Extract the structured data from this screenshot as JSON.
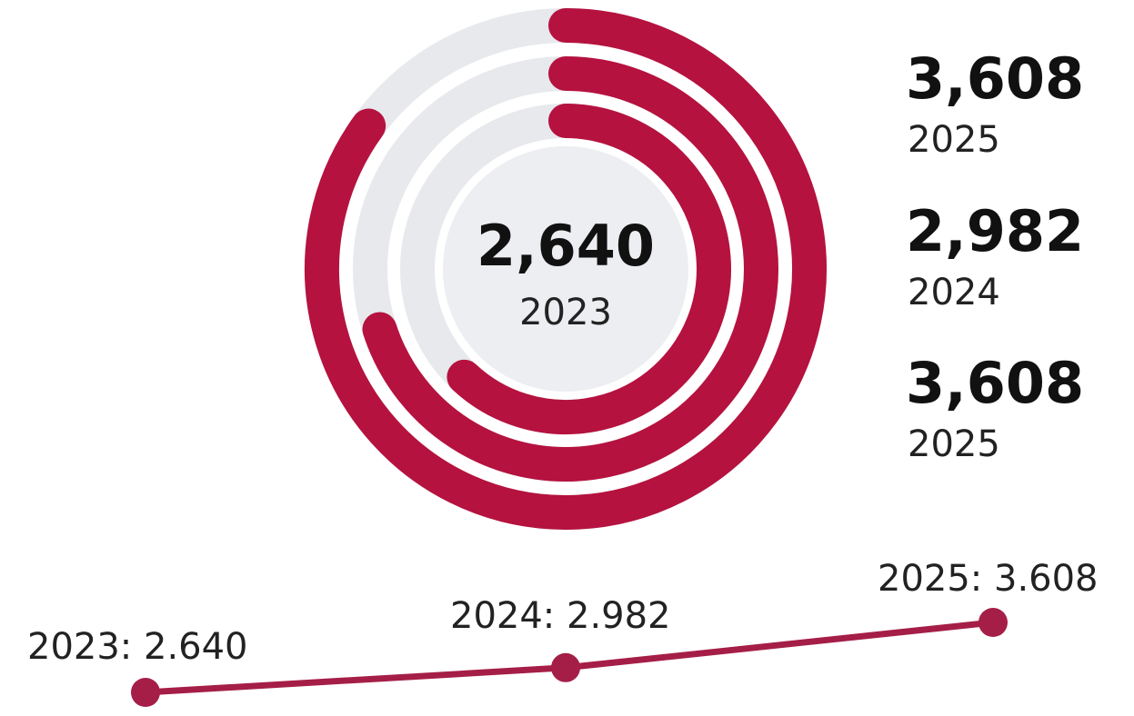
{
  "chart_data": [
    {
      "type": "radial-bar",
      "title": "",
      "center": {
        "value": "2,640",
        "year": "2023"
      },
      "series": [
        {
          "category": "2025",
          "value": 3608,
          "fraction": 0.85
        },
        {
          "category": "2024",
          "value": 2982,
          "fraction": 0.7
        },
        {
          "category": "2023",
          "value": 2640,
          "fraction": 0.62
        }
      ],
      "side_labels": [
        {
          "value": "3,608",
          "year": "2025"
        },
        {
          "value": "2,982",
          "year": "2024"
        },
        {
          "value": "3,608",
          "year": "2025"
        }
      ]
    },
    {
      "type": "line",
      "title": "",
      "x": [
        "2023",
        "2024",
        "2025"
      ],
      "values": [
        2.64,
        2.982,
        3.608
      ],
      "labels": [
        "2023: 2.640",
        "2024: 2.982",
        "2025: 3.608"
      ]
    }
  ],
  "colors": {
    "accent": "#b5123f",
    "track": "#e7e9ec",
    "line": "#a51e48"
  }
}
